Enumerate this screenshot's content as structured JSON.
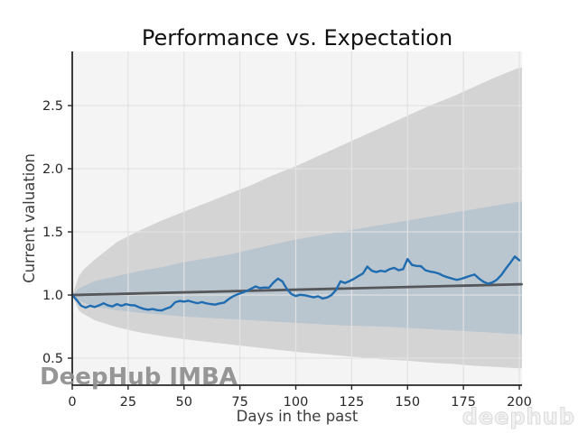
{
  "figure": {
    "title": "Performance vs. Expectation",
    "xlabel": "Days in the past",
    "ylabel": "Current valuation"
  },
  "watermarks": {
    "bottom_left": "DeepHub IMBA",
    "bottom_right": "deephub"
  },
  "colors": {
    "figure_background": "#ffffff",
    "plot_background": "#f4f4f4",
    "grid": "#e2e2e2",
    "outer_band": "#d4d4d4",
    "inner_band": "#b9c5cf",
    "trend_line": "#56575a",
    "performance_line": "#1f6cb0",
    "axis": "#262626",
    "watermark_left": "#8f8f8f",
    "watermark_right_fill": "#f2f2f2",
    "watermark_right_stroke": "#d9d9d9"
  },
  "chart_data": {
    "type": "line",
    "title": "Performance vs. Expectation",
    "xlabel": "Days in the past",
    "ylabel": "Current valuation",
    "xlim": [
      0,
      201.2
    ],
    "ylim": [
      0.286,
      2.929
    ],
    "xticks": [
      0,
      25,
      50,
      75,
      100,
      125,
      150,
      175,
      200
    ],
    "xtick_labels": [
      "0",
      "25",
      "50",
      "75",
      "100",
      "125",
      "150",
      "175",
      "200"
    ],
    "yticks": [
      0.5,
      1.0,
      1.5,
      2.0,
      2.5
    ],
    "ytick_labels": [
      "0.5",
      "1.0",
      "1.5",
      "2.0",
      "2.5"
    ],
    "grid": true,
    "legend": false,
    "bands": [
      {
        "name": "outer-confidence-band",
        "x": [
          0,
          3,
          5,
          10,
          20,
          30,
          40,
          50,
          60,
          70,
          80,
          90,
          100,
          110,
          120,
          130,
          140,
          150,
          160,
          170,
          180,
          190,
          200
        ],
        "upper": [
          1.0,
          1.15,
          1.2,
          1.28,
          1.42,
          1.51,
          1.59,
          1.66,
          1.73,
          1.8,
          1.87,
          1.95,
          2.02,
          2.1,
          2.18,
          2.26,
          2.34,
          2.42,
          2.5,
          2.57,
          2.65,
          2.73,
          2.8
        ],
        "lower": [
          1.0,
          0.875,
          0.85,
          0.8,
          0.745,
          0.705,
          0.675,
          0.65,
          0.63,
          0.61,
          0.59,
          0.57,
          0.55,
          0.535,
          0.52,
          0.505,
          0.49,
          0.48,
          0.465,
          0.455,
          0.44,
          0.43,
          0.42
        ]
      },
      {
        "name": "inner-confidence-band",
        "x": [
          0,
          3,
          5,
          10,
          20,
          30,
          40,
          50,
          60,
          70,
          80,
          90,
          100,
          110,
          120,
          130,
          140,
          150,
          160,
          170,
          180,
          190,
          200
        ],
        "upper": [
          1.0,
          1.05,
          1.07,
          1.11,
          1.15,
          1.19,
          1.22,
          1.26,
          1.29,
          1.32,
          1.36,
          1.4,
          1.44,
          1.47,
          1.5,
          1.53,
          1.56,
          1.59,
          1.62,
          1.65,
          1.68,
          1.71,
          1.74
        ],
        "lower": [
          1.0,
          0.955,
          0.94,
          0.905,
          0.88,
          0.86,
          0.845,
          0.83,
          0.82,
          0.81,
          0.8,
          0.79,
          0.78,
          0.77,
          0.76,
          0.755,
          0.75,
          0.74,
          0.73,
          0.72,
          0.71,
          0.7,
          0.69
        ]
      }
    ],
    "series": [
      {
        "name": "expectation-trend",
        "x": [
          0,
          201
        ],
        "y": [
          1.0,
          1.085
        ]
      },
      {
        "name": "performance",
        "x": [
          0,
          2,
          4,
          6,
          8,
          10,
          12,
          14,
          16,
          18,
          20,
          22,
          24,
          26,
          28,
          30,
          32,
          34,
          36,
          38,
          40,
          42,
          44,
          46,
          48,
          50,
          52,
          54,
          56,
          58,
          60,
          62,
          64,
          66,
          68,
          70,
          72,
          74,
          76,
          78,
          80,
          82,
          84,
          86,
          88,
          90,
          92,
          94,
          96,
          98,
          100,
          102,
          104,
          106,
          108,
          110,
          112,
          114,
          116,
          118,
          120,
          122,
          124,
          126,
          128,
          130,
          132,
          134,
          136,
          138,
          140,
          142,
          144,
          146,
          148,
          150,
          152,
          154,
          156,
          158,
          160,
          162,
          164,
          166,
          168,
          170,
          172,
          174,
          176,
          178,
          180,
          182,
          184,
          186,
          188,
          190,
          192,
          194,
          196,
          198,
          200
        ],
        "y": [
          1.0,
          0.96,
          0.915,
          0.9,
          0.915,
          0.905,
          0.918,
          0.935,
          0.918,
          0.91,
          0.928,
          0.915,
          0.928,
          0.92,
          0.918,
          0.902,
          0.89,
          0.884,
          0.889,
          0.88,
          0.878,
          0.892,
          0.905,
          0.942,
          0.953,
          0.948,
          0.954,
          0.944,
          0.935,
          0.944,
          0.934,
          0.928,
          0.924,
          0.934,
          0.94,
          0.968,
          0.99,
          1.006,
          1.018,
          1.032,
          1.05,
          1.068,
          1.055,
          1.06,
          1.058,
          1.098,
          1.13,
          1.108,
          1.048,
          1.008,
          0.992,
          1.002,
          0.998,
          0.99,
          0.982,
          0.99,
          0.972,
          0.98,
          1.0,
          1.04,
          1.108,
          1.095,
          1.11,
          1.128,
          1.15,
          1.17,
          1.225,
          1.192,
          1.182,
          1.192,
          1.186,
          1.205,
          1.215,
          1.196,
          1.205,
          1.285,
          1.238,
          1.23,
          1.228,
          1.196,
          1.186,
          1.18,
          1.17,
          1.152,
          1.14,
          1.13,
          1.12,
          1.128,
          1.14,
          1.152,
          1.162,
          1.13,
          1.105,
          1.09,
          1.1,
          1.122,
          1.16,
          1.21,
          1.256,
          1.305,
          1.275
        ]
      }
    ]
  }
}
